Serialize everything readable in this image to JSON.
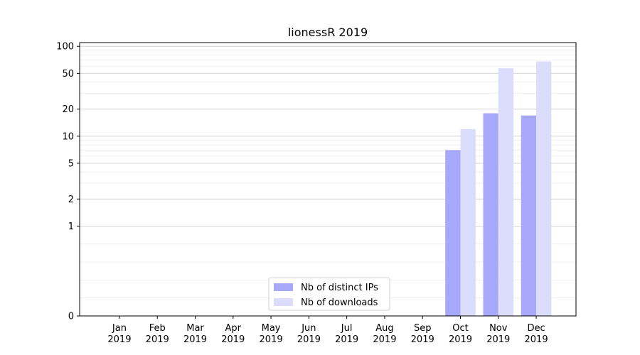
{
  "chart_data": {
    "type": "bar",
    "title": "lionessR 2019",
    "xlabel": "",
    "ylabel": "",
    "y_scale": "symlog",
    "ylim": [
      0,
      110
    ],
    "y_ticks": [
      0,
      1,
      2,
      5,
      10,
      20,
      50,
      100
    ],
    "categories": [
      "Jan 2019",
      "Feb 2019",
      "Mar 2019",
      "Apr 2019",
      "May 2019",
      "Jun 2019",
      "Jul 2019",
      "Aug 2019",
      "Sep 2019",
      "Oct 2019",
      "Nov 2019",
      "Dec 2019"
    ],
    "series": [
      {
        "name": "Nb of distinct IPs",
        "color": "#a8a8fa",
        "values": [
          0,
          0,
          0,
          0,
          0,
          0,
          0,
          0,
          0,
          7,
          18,
          17
        ]
      },
      {
        "name": "Nb of downloads",
        "color": "#dcdcfc",
        "values": [
          0,
          0,
          0,
          0,
          0,
          0,
          0,
          0,
          0,
          12,
          57,
          68
        ]
      }
    ],
    "grid": "y",
    "legend_position": "bottom-center"
  }
}
